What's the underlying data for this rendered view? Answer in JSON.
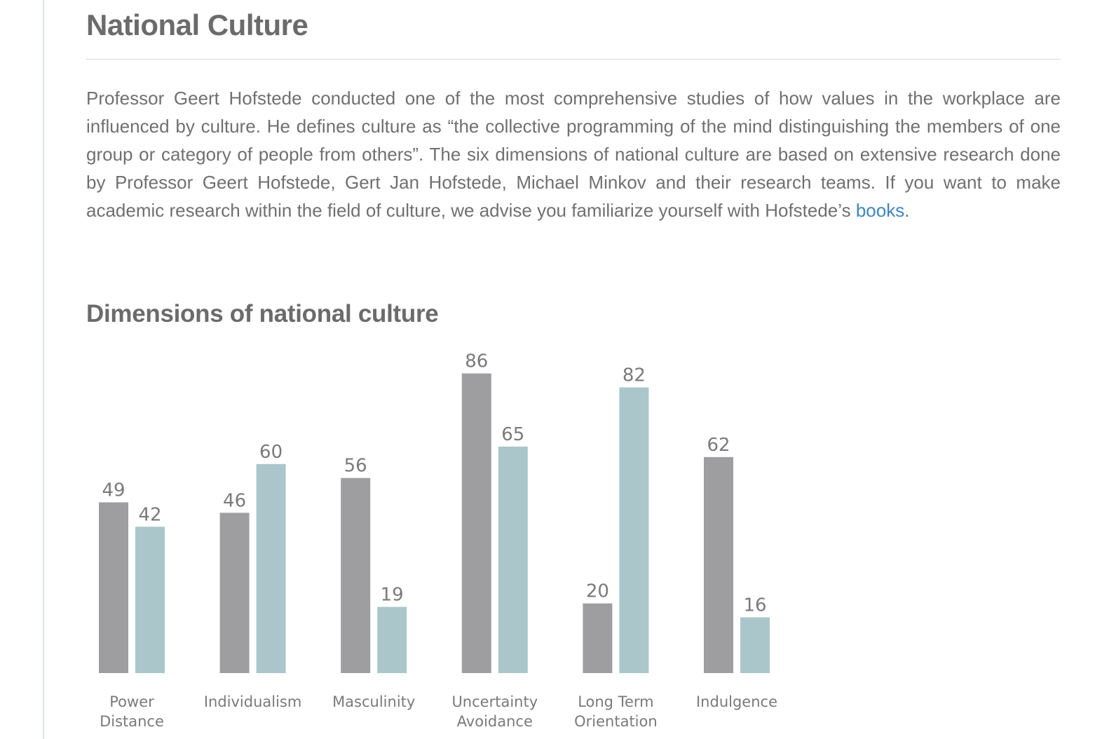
{
  "page": {
    "title": "National Culture",
    "intro_text": "Professor Geert Hofstede conducted one of the most comprehensive studies of how values in the workplace are influenced by culture. He defines culture as “the collective programming of the mind distinguishing the members of one group or category of people from others”. The six dimensions of national culture are based on extensive research done by Professor Geert Hofstede, Gert Jan Hofstede, Michael Minkov and their research teams. If you want to make academic research within the field of culture, we advise you familiarize yourself with Hofstede’s ",
    "intro_link": "books",
    "intro_end": ".",
    "section_title": "Dimensions of national culture"
  },
  "colors": {
    "series_a": "#9e9da0",
    "series_b": "#abc6ca",
    "link": "#3a87c8"
  },
  "chart_data": {
    "type": "bar",
    "categories": [
      [
        "Power",
        "Distance"
      ],
      [
        "Individualism"
      ],
      [
        "Masculinity"
      ],
      [
        "Uncertainty",
        "Avoidance"
      ],
      [
        "Long Term",
        "Orientation"
      ],
      [
        "Indulgence"
      ]
    ],
    "series": [
      {
        "values": [
          49,
          46,
          56,
          86,
          20,
          62
        ]
      },
      {
        "values": [
          42,
          60,
          19,
          65,
          82,
          16
        ]
      }
    ],
    "ylim": [
      0,
      100
    ],
    "grid": false,
    "legend": "none"
  }
}
